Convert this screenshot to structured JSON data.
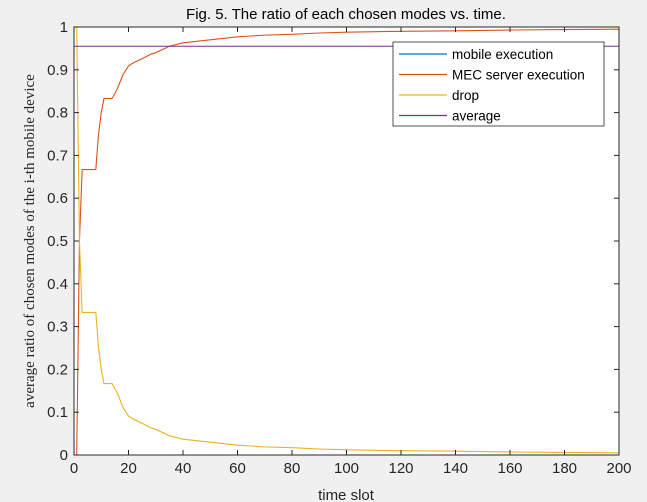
{
  "chart_data": {
    "type": "line",
    "title": "Fig. 5. The ratio of each chosen modes vs. time.",
    "xlabel": "time slot",
    "ylabel": "average ratio of chosen modes of the i-th mobile device",
    "xlim": [
      0,
      200
    ],
    "ylim": [
      0,
      1
    ],
    "xticks": [
      0,
      20,
      40,
      60,
      80,
      100,
      120,
      140,
      160,
      180,
      200
    ],
    "yticks": [
      0,
      0.1,
      0.2,
      0.3,
      0.4,
      0.5,
      0.6,
      0.7,
      0.8,
      0.9,
      1
    ],
    "grid": false,
    "legend_position": "top-right",
    "series": [
      {
        "name": "mobile execution",
        "color": "#0072BD",
        "x": [
          1,
          200
        ],
        "y": [
          0,
          0
        ]
      },
      {
        "name": "MEC server execution",
        "color": "#D95319",
        "x": [
          1,
          2,
          3,
          8,
          9,
          10,
          11,
          12,
          13,
          14,
          16,
          18,
          20,
          22,
          24,
          26,
          28,
          30,
          35,
          40,
          50,
          60,
          70,
          80,
          90,
          100,
          120,
          140,
          160,
          180,
          200
        ],
        "y": [
          0,
          0.5,
          0.667,
          0.667,
          0.75,
          0.8,
          0.833,
          0.833,
          0.833,
          0.833,
          0.857,
          0.889,
          0.909,
          0.917,
          0.923,
          0.929,
          0.936,
          0.94,
          0.955,
          0.963,
          0.97,
          0.977,
          0.981,
          0.983,
          0.986,
          0.988,
          0.99,
          0.991,
          0.993,
          0.994,
          0.995
        ]
      },
      {
        "name": "drop",
        "color": "#EDB120",
        "x": [
          1,
          2,
          3,
          8,
          9,
          10,
          11,
          12,
          13,
          14,
          16,
          18,
          20,
          22,
          24,
          26,
          28,
          30,
          35,
          40,
          50,
          60,
          70,
          80,
          90,
          100,
          120,
          140,
          160,
          180,
          200
        ],
        "y": [
          1,
          0.5,
          0.333,
          0.333,
          0.25,
          0.2,
          0.167,
          0.167,
          0.167,
          0.167,
          0.143,
          0.111,
          0.091,
          0.083,
          0.077,
          0.071,
          0.064,
          0.06,
          0.045,
          0.037,
          0.03,
          0.023,
          0.019,
          0.017,
          0.014,
          0.012,
          0.01,
          0.009,
          0.007,
          0.006,
          0.005
        ]
      },
      {
        "name": "average",
        "color": "#7E2F8E",
        "x": [
          0,
          200
        ],
        "y": [
          0.955,
          0.955
        ]
      }
    ]
  }
}
